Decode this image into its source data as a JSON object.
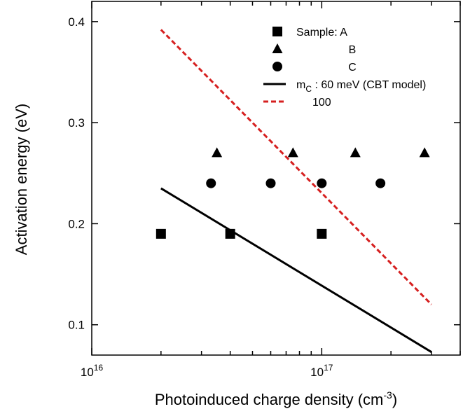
{
  "chart_data": {
    "type": "scatter",
    "title": "",
    "xlabel": "Photoinduced charge density (cm",
    "xlabel_sup": "-3",
    "xlabel_suffix": ")",
    "ylabel": "Activation energy (eV)",
    "x_scale": "log",
    "xlim": [
      1e+16,
      4e+17
    ],
    "ylim": [
      0.07,
      0.42
    ],
    "x_ticks": [
      {
        "value": 1e+16,
        "base": "10",
        "exp": "16"
      },
      {
        "value": 1e+17,
        "base": "10",
        "exp": "17"
      }
    ],
    "y_ticks": [
      {
        "value": 0.1,
        "label": "0.1"
      },
      {
        "value": 0.2,
        "label": "0.2"
      },
      {
        "value": 0.3,
        "label": "0.3"
      },
      {
        "value": 0.4,
        "label": "0.4"
      }
    ],
    "grid": false,
    "legend_position": "top-right",
    "series": [
      {
        "name": "Sample: A",
        "kind": "points",
        "marker": "square",
        "color": "#000000",
        "x": [
          2e+16,
          4e+16,
          1e+17
        ],
        "y": [
          0.19,
          0.19,
          0.19
        ]
      },
      {
        "name": "B",
        "kind": "points",
        "marker": "triangle",
        "color": "#000000",
        "x": [
          3.5e+16,
          7.5e+16,
          1.4e+17,
          2.8e+17
        ],
        "y": [
          0.27,
          0.27,
          0.27,
          0.27
        ]
      },
      {
        "name": "C",
        "kind": "points",
        "marker": "circle",
        "color": "#000000",
        "x": [
          3.3e+16,
          6e+16,
          1e+17,
          1.8e+17
        ],
        "y": [
          0.24,
          0.24,
          0.24,
          0.24
        ]
      },
      {
        "name": "m",
        "name_sub": "C",
        "name_suffix": " : 60 meV (CBT model)",
        "kind": "line",
        "dash": "solid",
        "color": "#000000",
        "x": [
          2e+16,
          3e+17
        ],
        "y": [
          0.235,
          0.073
        ]
      },
      {
        "name": "100",
        "kind": "line",
        "dash": "dashed",
        "color": "#d62020",
        "x": [
          2e+16,
          3e+17
        ],
        "y": [
          0.392,
          0.12
        ]
      }
    ]
  }
}
